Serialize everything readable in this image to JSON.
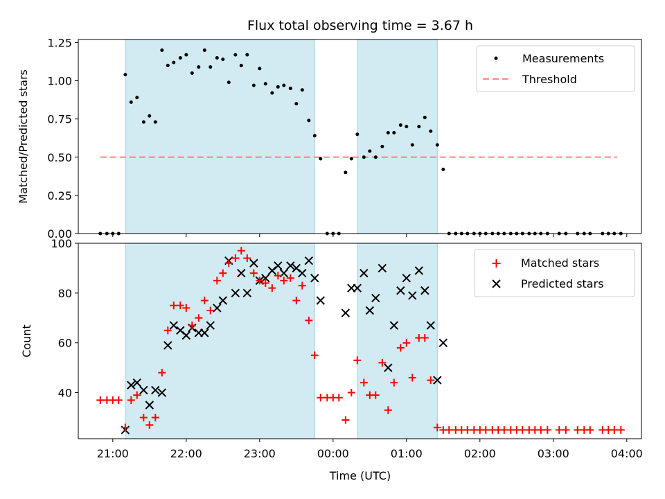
{
  "chart_data": [
    {
      "type": "scatter",
      "title": "Flux total observing time = 3.67 h",
      "xlabel": "",
      "ylabel": "Matched/Predicted stars",
      "x_range_hours": [
        20.53,
        28.2
      ],
      "ylim": [
        0,
        1.27
      ],
      "yticks": [
        0.0,
        0.25,
        0.5,
        0.75,
        1.0,
        1.25
      ],
      "ytick_labels": [
        "0.00",
        "0.25",
        "0.50",
        "0.75",
        "1.00",
        "1.25"
      ],
      "shaded_intervals_hours": [
        [
          21.17,
          23.75
        ],
        [
          24.33,
          25.42
        ]
      ],
      "shade_color": "#add8e6",
      "legend": {
        "placement": "top-right",
        "entries": [
          "Measurements",
          "Threshold"
        ]
      },
      "threshold": {
        "name": "Threshold",
        "value": 0.5,
        "x_start": 20.83,
        "x_end": 27.87,
        "color": "#ff6a6a"
      },
      "series": [
        {
          "name": "Measurements",
          "color": "#000000",
          "marker": "dot",
          "x_hours": [
            20.83,
            20.92,
            21.0,
            21.08,
            21.17,
            21.25,
            21.33,
            21.42,
            21.5,
            21.58,
            21.67,
            21.75,
            21.83,
            21.92,
            22.0,
            22.08,
            22.17,
            22.25,
            22.33,
            22.42,
            22.5,
            22.58,
            22.67,
            22.75,
            22.83,
            22.92,
            23.0,
            23.08,
            23.17,
            23.25,
            23.33,
            23.42,
            23.5,
            23.58,
            23.67,
            23.75,
            23.83,
            23.92,
            24.0,
            24.08,
            24.17,
            24.25,
            24.33,
            24.42,
            24.5,
            24.58,
            24.67,
            24.75,
            24.83,
            24.92,
            25.0,
            25.08,
            25.17,
            25.25,
            25.33,
            25.42,
            25.5,
            25.58,
            25.67,
            25.75,
            25.83,
            25.92,
            26.0,
            26.08,
            26.17,
            26.25,
            26.33,
            26.42,
            26.5,
            26.58,
            26.67,
            26.75,
            26.83,
            26.92,
            27.08,
            27.17,
            27.33,
            27.42,
            27.5,
            27.67,
            27.75,
            27.83,
            27.92
          ],
          "y": [
            0,
            0,
            0,
            0,
            1.04,
            0.86,
            0.89,
            0.73,
            0.77,
            0.73,
            1.2,
            1.1,
            1.12,
            1.15,
            1.17,
            1.05,
            1.09,
            1.2,
            1.09,
            1.15,
            1.14,
            0.99,
            1.17,
            1.1,
            1.17,
            0.97,
            1.08,
            0.98,
            0.92,
            0.96,
            0.97,
            0.95,
            0.85,
            0.94,
            0.74,
            0.64,
            0.49,
            0,
            0,
            0,
            0.4,
            0.49,
            0.65,
            0.5,
            0.54,
            0.5,
            0.57,
            0.66,
            0.66,
            0.71,
            0.7,
            0.58,
            0.7,
            0.76,
            0.67,
            0.58,
            0.42,
            0,
            0,
            0,
            0,
            0,
            0,
            0,
            0,
            0,
            0,
            0,
            0,
            0,
            0,
            0,
            0,
            0,
            0,
            0,
            0,
            0,
            0,
            0,
            0,
            0,
            0
          ]
        }
      ]
    },
    {
      "type": "scatter",
      "title": "",
      "xlabel": "Time (UTC)",
      "ylabel": "Count",
      "x_range_hours": [
        20.53,
        28.2
      ],
      "xticks_hours": [
        21,
        22,
        23,
        24,
        25,
        26,
        27,
        28
      ],
      "xtick_labels": [
        "21:00",
        "22:00",
        "23:00",
        "00:00",
        "01:00",
        "02:00",
        "03:00",
        "04:00"
      ],
      "ylim": [
        21.5,
        100
      ],
      "yticks": [
        40,
        60,
        80,
        100
      ],
      "ytick_labels": [
        "40",
        "60",
        "80",
        "100"
      ],
      "shaded_intervals_hours": [
        [
          21.17,
          23.75
        ],
        [
          24.33,
          25.42
        ]
      ],
      "shade_color": "#add8e6",
      "legend": {
        "placement": "top-right",
        "entries": [
          "Matched stars",
          "Predicted stars"
        ]
      },
      "series": [
        {
          "name": "Matched stars",
          "color": "#ff0000",
          "marker": "plus",
          "x_hours": [
            20.83,
            20.92,
            21.0,
            21.08,
            21.17,
            21.25,
            21.33,
            21.42,
            21.5,
            21.58,
            21.67,
            21.75,
            21.83,
            21.92,
            22.0,
            22.08,
            22.17,
            22.25,
            22.33,
            22.42,
            22.5,
            22.58,
            22.67,
            22.75,
            22.83,
            22.92,
            23.0,
            23.08,
            23.17,
            23.25,
            23.33,
            23.42,
            23.5,
            23.58,
            23.67,
            23.75,
            23.83,
            23.92,
            24.0,
            24.08,
            24.17,
            24.25,
            24.33,
            24.42,
            24.5,
            24.58,
            24.67,
            24.75,
            24.83,
            24.92,
            25.0,
            25.08,
            25.17,
            25.25,
            25.33,
            25.42,
            25.5,
            25.58,
            25.67,
            25.75,
            25.83,
            25.92,
            26.0,
            26.08,
            26.17,
            26.25,
            26.33,
            26.42,
            26.5,
            26.58,
            26.67,
            26.75,
            26.83,
            26.92,
            27.08,
            27.17,
            27.33,
            27.42,
            27.5,
            27.67,
            27.75,
            27.83,
            27.92
          ],
          "y": [
            37,
            37,
            37,
            37,
            26,
            37,
            39,
            30,
            27,
            30,
            48,
            65,
            75,
            75,
            74,
            67,
            70,
            77,
            73,
            85,
            88,
            92,
            94,
            97,
            94,
            88,
            85,
            84,
            82,
            87,
            85,
            86,
            77,
            83,
            69,
            55,
            38,
            38,
            38,
            38,
            29,
            40,
            53,
            44,
            39,
            39,
            52,
            33,
            44,
            58,
            60,
            46,
            62,
            62,
            45,
            26,
            25,
            25,
            25,
            25,
            25,
            25,
            25,
            25,
            25,
            25,
            25,
            25,
            25,
            25,
            25,
            25,
            25,
            25,
            25,
            25,
            25,
            25,
            25,
            25,
            25,
            25,
            25
          ]
        },
        {
          "name": "Predicted stars",
          "color": "#000000",
          "marker": "x",
          "x_hours": [
            21.17,
            21.25,
            21.33,
            21.42,
            21.5,
            21.58,
            21.67,
            21.75,
            21.83,
            21.92,
            22.0,
            22.08,
            22.17,
            22.25,
            22.33,
            22.42,
            22.5,
            22.58,
            22.67,
            22.75,
            22.83,
            22.92,
            23.0,
            23.08,
            23.17,
            23.25,
            23.33,
            23.42,
            23.5,
            23.58,
            23.67,
            23.75,
            23.83,
            24.17,
            24.25,
            24.33,
            24.42,
            24.5,
            24.58,
            24.67,
            24.75,
            24.83,
            24.92,
            25.0,
            25.08,
            25.17,
            25.25,
            25.33,
            25.42,
            25.5
          ],
          "y": [
            25,
            43,
            44,
            41,
            35,
            41,
            40,
            59,
            67,
            65,
            63,
            66,
            64,
            64,
            67,
            74,
            77,
            93,
            80,
            88,
            80,
            92,
            85,
            86,
            89,
            91,
            88,
            91,
            90,
            88,
            93,
            86,
            77,
            72,
            82,
            82,
            88,
            73,
            78,
            90,
            50,
            67,
            81,
            86,
            79,
            89,
            81,
            67,
            45,
            60
          ]
        }
      ]
    }
  ]
}
